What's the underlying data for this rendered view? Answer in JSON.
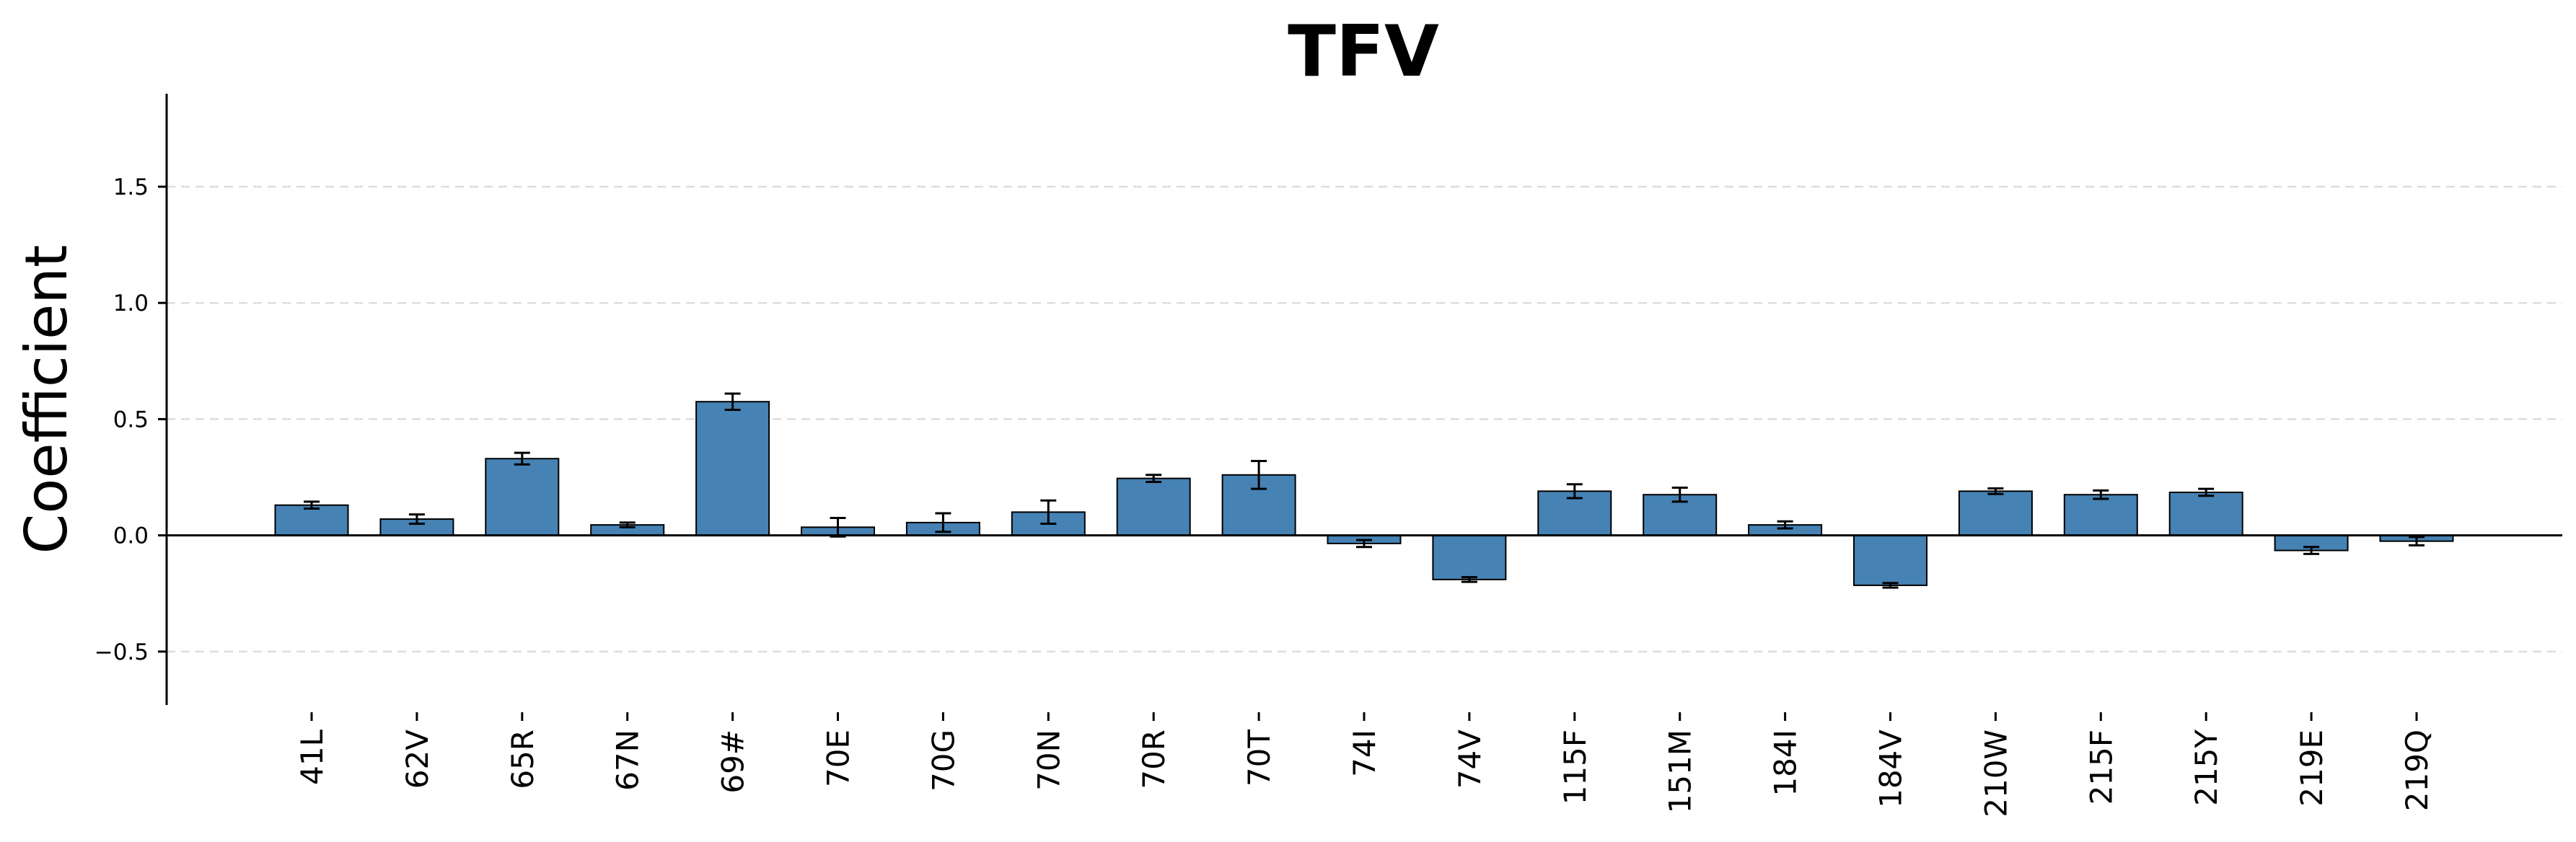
{
  "chart_data": {
    "type": "bar",
    "title": "TFV",
    "xlabel": "",
    "ylabel": "Coefficient",
    "ylim": [
      -0.73,
      1.9
    ],
    "yticks": [
      -0.5,
      0.0,
      0.5,
      1.0,
      1.5
    ],
    "ytick_labels": [
      "−0.5",
      "0.0",
      "0.5",
      "1.0",
      "1.5"
    ],
    "grid": "horizontal-dashed",
    "categories": [
      "41L",
      "62V",
      "65R",
      "67N",
      "69#",
      "70E",
      "70G",
      "70N",
      "70R",
      "70T",
      "74I",
      "74V",
      "115F",
      "151M",
      "184I",
      "184V",
      "210W",
      "215F",
      "215Y",
      "219E",
      "219Q"
    ],
    "values": [
      0.13,
      0.07,
      0.33,
      0.045,
      0.575,
      0.035,
      0.055,
      0.1,
      0.245,
      0.26,
      -0.035,
      -0.19,
      0.19,
      0.175,
      0.045,
      -0.215,
      0.19,
      0.175,
      0.185,
      -0.065,
      -0.025
    ],
    "errors": [
      0.015,
      0.02,
      0.025,
      0.01,
      0.035,
      0.04,
      0.04,
      0.05,
      0.015,
      0.06,
      0.015,
      0.01,
      0.03,
      0.03,
      0.015,
      0.01,
      0.012,
      0.018,
      0.015,
      0.015,
      0.018
    ],
    "bar_color": "#4682b4",
    "bar_edge_color": "#000000",
    "error_color": "#000000",
    "grid_color": "#dddddd"
  }
}
